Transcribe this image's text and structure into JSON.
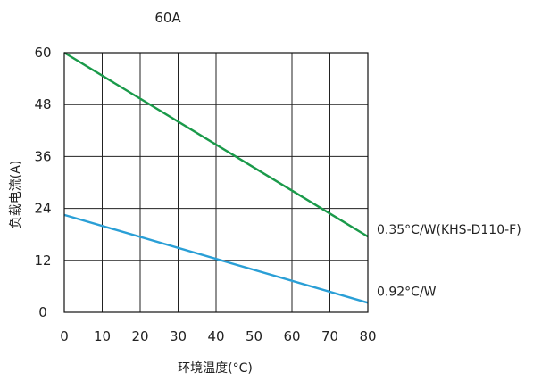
{
  "chart_data": {
    "type": "line",
    "title": "60A",
    "xlabel": "环境温度(°C)",
    "ylabel": "负载电流(A)",
    "x_ticks": [
      0,
      10,
      20,
      30,
      40,
      50,
      60,
      70,
      80
    ],
    "y_ticks": [
      0,
      12,
      24,
      36,
      48,
      60
    ],
    "xlim": [
      0,
      80
    ],
    "ylim": [
      0,
      60
    ],
    "grid": true,
    "series": [
      {
        "name": "0.35°C/W(KHS-D110-F)",
        "color": "#1a9a4a",
        "x": [
          0,
          80
        ],
        "y": [
          60,
          17.5
        ]
      },
      {
        "name": "0.92°C/W",
        "color": "#2a9fd6",
        "x": [
          0,
          80
        ],
        "y": [
          22.5,
          2.2
        ]
      }
    ]
  }
}
